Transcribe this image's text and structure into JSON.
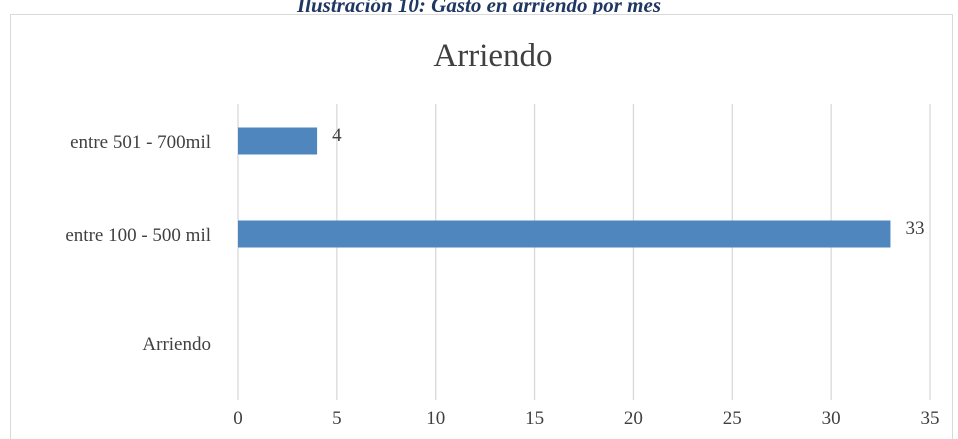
{
  "caption": "Ilustración 10: Gasto en arriendo por mes",
  "chart_data": {
    "type": "bar",
    "orientation": "horizontal",
    "title": "Arriendo",
    "categories": [
      "entre 501 - 700mil",
      "entre 100 - 500 mil",
      "Arriendo"
    ],
    "values": [
      4,
      33,
      null
    ],
    "xlim": [
      0,
      35
    ],
    "xticks": [
      "0",
      "5",
      "10",
      "15",
      "20",
      "25",
      "30",
      "35"
    ],
    "grid": true,
    "bar_color": "#4f86be",
    "data_labels": [
      "4",
      "33",
      ""
    ]
  }
}
